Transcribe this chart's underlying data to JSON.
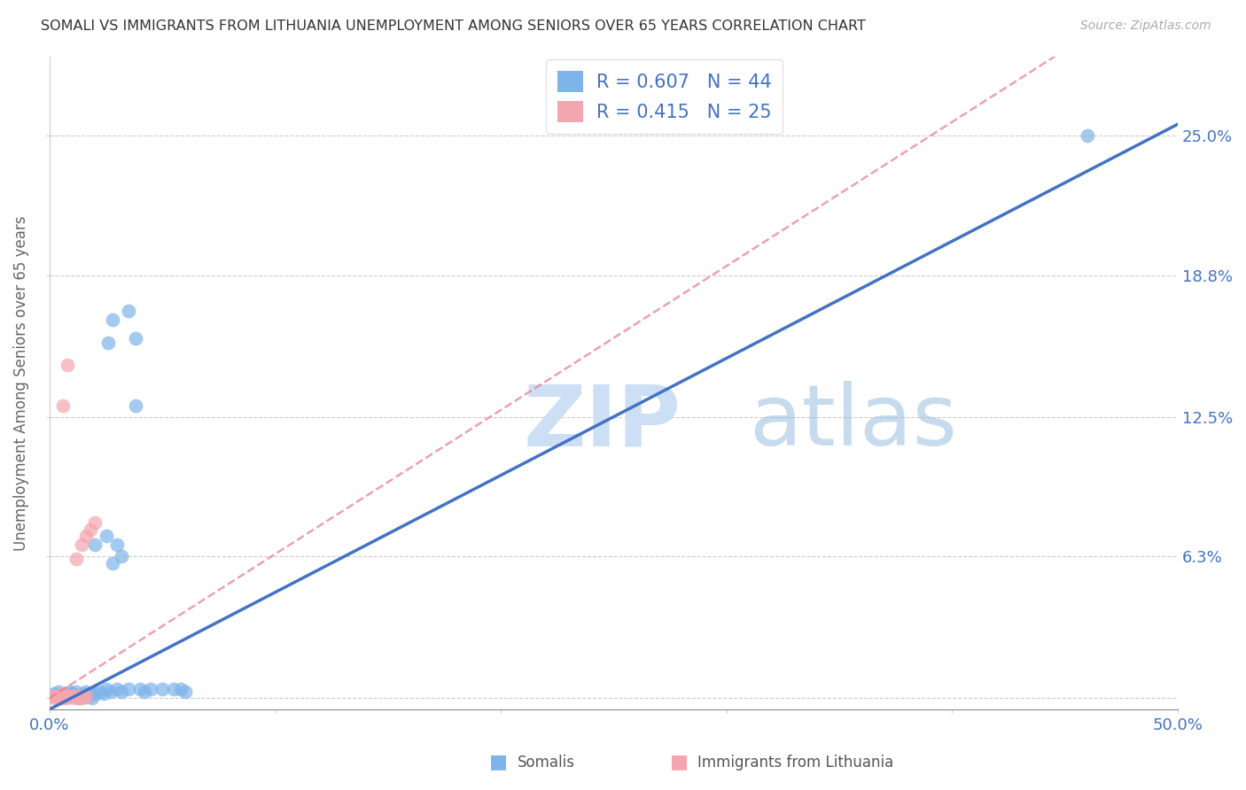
{
  "title": "SOMALI VS IMMIGRANTS FROM LITHUANIA UNEMPLOYMENT AMONG SENIORS OVER 65 YEARS CORRELATION CHART",
  "source": "Source: ZipAtlas.com",
  "ylabel": "Unemployment Among Seniors over 65 years",
  "xlim": [
    0.0,
    0.5
  ],
  "ylim": [
    -0.005,
    0.285
  ],
  "yticks": [
    0.0,
    0.063,
    0.125,
    0.188,
    0.25
  ],
  "ytick_labels": [
    "",
    "6.3%",
    "12.5%",
    "18.8%",
    "25.0%"
  ],
  "xticks": [
    0.0,
    0.1,
    0.2,
    0.3,
    0.4,
    0.5
  ],
  "xtick_labels": [
    "0.0%",
    "",
    "",
    "",
    "",
    "50.0%"
  ],
  "grid_color": "#cccccc",
  "watermark_zip": "ZIP",
  "watermark_atlas": "atlas",
  "legend_r1": "R = 0.607",
  "legend_n1": "N = 44",
  "legend_r2": "R = 0.415",
  "legend_n2": "N = 25",
  "somali_color": "#7eb4ea",
  "lithuania_color": "#f4a6b0",
  "somali_line_color": "#4472c4",
  "lithuania_line_color": "#e87a8a",
  "somali_scatter": [
    [
      0.002,
      0.002
    ],
    [
      0.003,
      0.001
    ],
    [
      0.004,
      0.003
    ],
    [
      0.005,
      0.0
    ],
    [
      0.006,
      0.001
    ],
    [
      0.007,
      0.002
    ],
    [
      0.008,
      0.001
    ],
    [
      0.009,
      0.003
    ],
    [
      0.01,
      0.002
    ],
    [
      0.011,
      0.001
    ],
    [
      0.012,
      0.003
    ],
    [
      0.013,
      0.0
    ],
    [
      0.014,
      0.001
    ],
    [
      0.015,
      0.002
    ],
    [
      0.016,
      0.003
    ],
    [
      0.017,
      0.001
    ],
    [
      0.018,
      0.002
    ],
    [
      0.019,
      0.0
    ],
    [
      0.02,
      0.002
    ],
    [
      0.022,
      0.003
    ],
    [
      0.024,
      0.002
    ],
    [
      0.025,
      0.004
    ],
    [
      0.027,
      0.003
    ],
    [
      0.03,
      0.004
    ],
    [
      0.032,
      0.003
    ],
    [
      0.035,
      0.004
    ],
    [
      0.04,
      0.004
    ],
    [
      0.042,
      0.003
    ],
    [
      0.045,
      0.004
    ],
    [
      0.05,
      0.004
    ],
    [
      0.055,
      0.004
    ],
    [
      0.058,
      0.004
    ],
    [
      0.06,
      0.003
    ],
    [
      0.02,
      0.068
    ],
    [
      0.025,
      0.072
    ],
    [
      0.03,
      0.068
    ],
    [
      0.026,
      0.158
    ],
    [
      0.028,
      0.168
    ],
    [
      0.035,
      0.172
    ],
    [
      0.038,
      0.16
    ],
    [
      0.038,
      0.13
    ],
    [
      0.032,
      0.063
    ],
    [
      0.028,
      0.06
    ],
    [
      0.46,
      0.25
    ]
  ],
  "lithuania_scatter": [
    [
      0.001,
      0.001
    ],
    [
      0.002,
      0.0
    ],
    [
      0.003,
      0.001
    ],
    [
      0.004,
      0.0
    ],
    [
      0.005,
      0.001
    ],
    [
      0.006,
      0.0
    ],
    [
      0.007,
      0.001
    ],
    [
      0.008,
      0.0
    ],
    [
      0.009,
      0.001
    ],
    [
      0.01,
      0.001
    ],
    [
      0.011,
      0.0
    ],
    [
      0.012,
      0.001
    ],
    [
      0.013,
      0.0
    ],
    [
      0.014,
      0.001
    ],
    [
      0.015,
      0.0
    ],
    [
      0.016,
      0.001
    ],
    [
      0.012,
      0.062
    ],
    [
      0.014,
      0.068
    ],
    [
      0.016,
      0.072
    ],
    [
      0.018,
      0.075
    ],
    [
      0.02,
      0.078
    ],
    [
      0.006,
      0.13
    ],
    [
      0.008,
      0.148
    ],
    [
      0.006,
      0.002
    ],
    [
      0.007,
      0.001
    ]
  ]
}
